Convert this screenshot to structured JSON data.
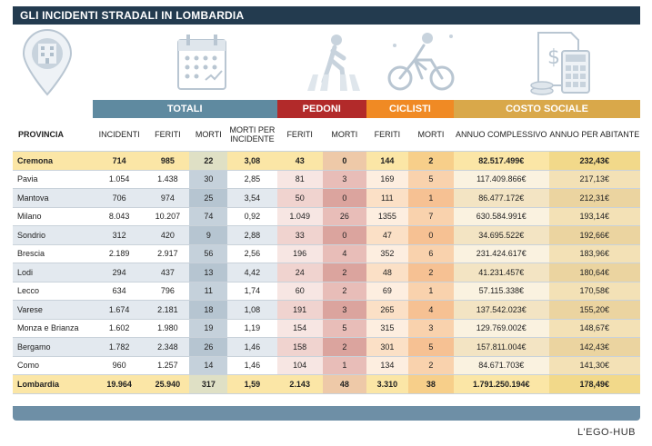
{
  "title": "GLI INCIDENTI STRADALI IN LOMBARDIA",
  "icons": [
    "map-pin-building-icon",
    "calendar-icon",
    "pedestrian-crossing-icon",
    "cyclist-icon",
    "calculator-money-icon"
  ],
  "groups": {
    "totali": "TOTALI",
    "pedoni": "PEDONI",
    "ciclisti": "CICLISTI",
    "costo": "COSTO SOCIALE"
  },
  "colors": {
    "title_bg": "#233b4f",
    "totali": "#5f8aa0",
    "pedoni": "#b22a2a",
    "ciclisti": "#f08a24",
    "costo": "#d9a84a",
    "highlight": "#fbe6a6"
  },
  "headers": {
    "provincia": "PROVINCIA",
    "incidenti": "INCIDENTI",
    "feriti": "FERITI",
    "morti": "MORTI",
    "morti_per_incidente": "MORTI PER INCIDENTE",
    "ped_feriti": "FERITI",
    "ped_morti": "MORTI",
    "cic_feriti": "FERITI",
    "cic_morti": "MORTI",
    "annuo_complessivo": "ANNUO COMPLESSIVO",
    "annuo_per_abitante": "ANNUO PER ABITANTE"
  },
  "rows": [
    [
      "Cremona",
      "714",
      "985",
      "22",
      "3,08",
      "43",
      "0",
      "144",
      "2",
      "82.517.499€",
      "232,43€"
    ],
    [
      "Pavia",
      "1.054",
      "1.438",
      "30",
      "2,85",
      "81",
      "3",
      "169",
      "5",
      "117.409.866€",
      "217,13€"
    ],
    [
      "Mantova",
      "706",
      "974",
      "25",
      "3,54",
      "50",
      "0",
      "111",
      "1",
      "86.477.172€",
      "212,31€"
    ],
    [
      "Milano",
      "8.043",
      "10.207",
      "74",
      "0,92",
      "1.049",
      "26",
      "1355",
      "7",
      "630.584.991€",
      "193,14€"
    ],
    [
      "Sondrio",
      "312",
      "420",
      "9",
      "2,88",
      "33",
      "0",
      "47",
      "0",
      "34.695.522€",
      "192,66€"
    ],
    [
      "Brescia",
      "2.189",
      "2.917",
      "56",
      "2,56",
      "196",
      "4",
      "352",
      "6",
      "231.424.617€",
      "183,96€"
    ],
    [
      "Lodi",
      "294",
      "437",
      "13",
      "4,42",
      "24",
      "2",
      "48",
      "2",
      "41.231.457€",
      "180,64€"
    ],
    [
      "Lecco",
      "634",
      "796",
      "11",
      "1,74",
      "60",
      "2",
      "69",
      "1",
      "57.115.338€",
      "170,58€"
    ],
    [
      "Varese",
      "1.674",
      "2.181",
      "18",
      "1,08",
      "191",
      "3",
      "265",
      "4",
      "137.542.023€",
      "155,20€"
    ],
    [
      "Monza e Brianza",
      "1.602",
      "1.980",
      "19",
      "1,19",
      "154",
      "5",
      "315",
      "3",
      "129.769.002€",
      "148,67€"
    ],
    [
      "Bergamo",
      "1.782",
      "2.348",
      "26",
      "1,46",
      "158",
      "2",
      "301",
      "5",
      "157.811.004€",
      "142,43€"
    ],
    [
      "Como",
      "960",
      "1.257",
      "14",
      "1,46",
      "104",
      "1",
      "134",
      "2",
      "84.671.703€",
      "141,30€"
    ],
    [
      "Lombardia",
      "19.964",
      "25.940",
      "317",
      "1,59",
      "2.143",
      "48",
      "3.310",
      "38",
      "1.791.250.194€",
      "178,49€"
    ]
  ],
  "credit": "L'EGO-HUB"
}
